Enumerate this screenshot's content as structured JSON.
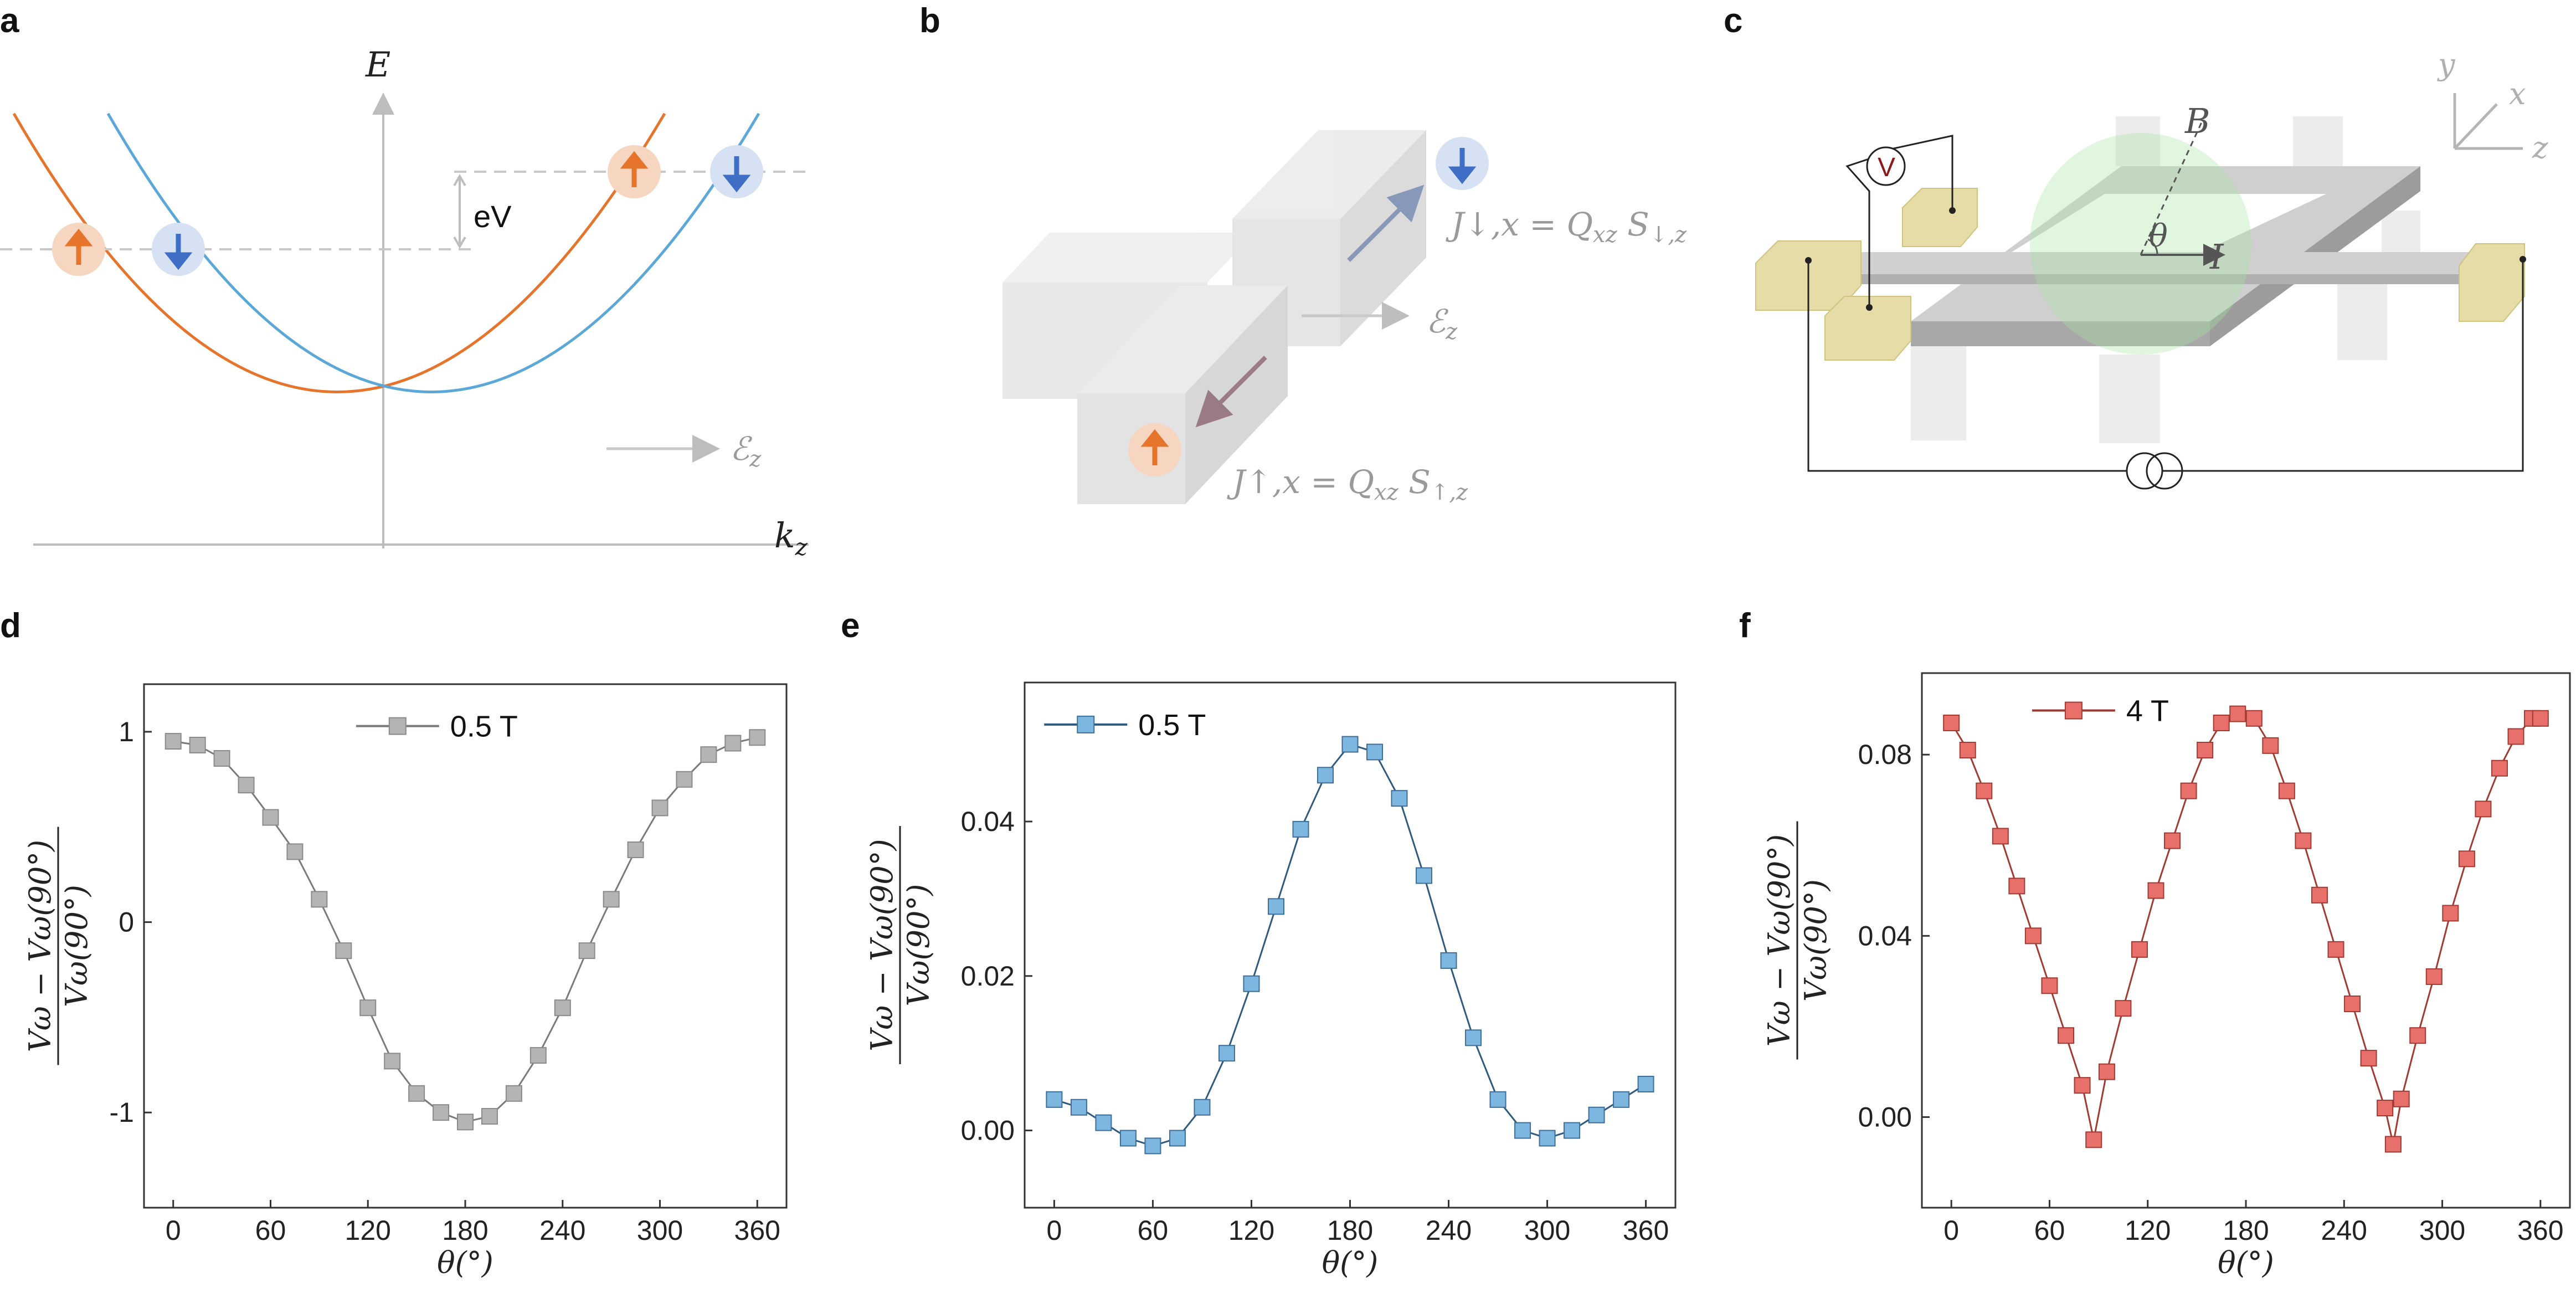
{
  "panels": {
    "a": {
      "label": "a",
      "e_axis": "E",
      "k_axis": "k",
      "k_axis_sub": "z",
      "ev": "eV",
      "field": "ℰ",
      "field_sub": "z"
    },
    "b": {
      "label": "b",
      "field": "ℰ",
      "field_sub": "z",
      "j_down": "J↓,x = Q",
      "j_down_q": "xz",
      "j_down_s": " S",
      "j_down_ssub": "↓,z",
      "j_up": "J↑,x = Q",
      "j_up_q": "xz",
      "j_up_s": " S",
      "j_up_ssub": "↑,z"
    },
    "c": {
      "label": "c",
      "axis_y": "y",
      "axis_x": "x",
      "axis_z": "z",
      "b_field": "B",
      "theta": "θ",
      "current": "I",
      "voltmeter": "V"
    },
    "d": {
      "label": "d"
    },
    "e": {
      "label": "e"
    },
    "f": {
      "label": "f"
    }
  },
  "colors": {
    "gray_series": "#b4b4b4",
    "blue_series": "#7db7df",
    "red_series": "#e8706a",
    "band_up": "#e6742b",
    "band_down": "#5ba8d8"
  },
  "chart_data": [
    {
      "type": "scatter",
      "panel": "d",
      "xlabel": "θ(°)",
      "ylabel_num": "Vω − Vω(90°)",
      "ylabel_den": "Vω(90°)",
      "xlim": [
        -18,
        378
      ],
      "ylim": [
        -1.5,
        1.25
      ],
      "xticks": [
        0,
        60,
        120,
        180,
        240,
        300,
        360
      ],
      "yticks": [
        -1,
        0,
        1
      ],
      "ytick_labels": [
        "-1",
        "0",
        "1"
      ],
      "legend_position": "top-center",
      "series": [
        {
          "name": "0.5 T",
          "marker": "square",
          "connected": true,
          "x": [
            0,
            15,
            30,
            45,
            60,
            75,
            90,
            105,
            120,
            135,
            150,
            165,
            180,
            195,
            210,
            225,
            240,
            255,
            270,
            285,
            300,
            315,
            330,
            345,
            360
          ],
          "y": [
            0.95,
            0.93,
            0.86,
            0.72,
            0.55,
            0.37,
            0.12,
            -0.15,
            -0.45,
            -0.73,
            -0.9,
            -1.0,
            -1.05,
            -1.02,
            -0.9,
            -0.7,
            -0.45,
            -0.15,
            0.12,
            0.38,
            0.6,
            0.75,
            0.88,
            0.94,
            0.97
          ]
        }
      ]
    },
    {
      "type": "scatter",
      "panel": "e",
      "xlabel": "θ(°)",
      "ylabel_num": "Vω − Vω(90°)",
      "ylabel_den": "Vω(90°)",
      "xlim": [
        -18,
        378
      ],
      "ylim": [
        -0.01,
        0.058
      ],
      "xticks": [
        0,
        60,
        120,
        180,
        240,
        300,
        360
      ],
      "yticks": [
        0.0,
        0.02,
        0.04
      ],
      "ytick_labels": [
        "0.00",
        "0.02",
        "0.04"
      ],
      "legend_position": "top-left",
      "series": [
        {
          "name": "0.5 T",
          "marker": "square",
          "connected": true,
          "x": [
            0,
            15,
            30,
            45,
            60,
            75,
            90,
            105,
            120,
            135,
            150,
            165,
            180,
            195,
            210,
            225,
            240,
            255,
            270,
            285,
            300,
            315,
            330,
            345,
            360
          ],
          "y": [
            0.004,
            0.003,
            0.001,
            -0.001,
            -0.002,
            -0.001,
            0.003,
            0.01,
            0.019,
            0.029,
            0.039,
            0.046,
            0.05,
            0.049,
            0.043,
            0.033,
            0.022,
            0.012,
            0.004,
            0.0,
            -0.001,
            0.0,
            0.002,
            0.004,
            0.006
          ]
        }
      ]
    },
    {
      "type": "scatter",
      "panel": "f",
      "xlabel": "θ(°)",
      "ylabel_num": "Vω − Vω(90°)",
      "ylabel_den": "Vω(90°)",
      "xlim": [
        -18,
        378
      ],
      "ylim": [
        -0.02,
        0.098
      ],
      "xticks": [
        0,
        60,
        120,
        180,
        240,
        300,
        360
      ],
      "yticks": [
        0.0,
        0.04,
        0.08
      ],
      "ytick_labels": [
        "0.00",
        "0.04",
        "0.08"
      ],
      "legend_position": "top-left",
      "series": [
        {
          "name": "4 T",
          "marker": "square",
          "connected": true,
          "x": [
            0,
            10,
            20,
            30,
            40,
            50,
            60,
            70,
            80,
            87,
            95,
            105,
            115,
            125,
            135,
            145,
            155,
            165,
            175,
            185,
            195,
            205,
            215,
            225,
            235,
            245,
            255,
            265,
            270,
            275,
            285,
            295,
            305,
            315,
            325,
            335,
            345,
            355,
            360
          ],
          "y": [
            0.087,
            0.081,
            0.072,
            0.062,
            0.051,
            0.04,
            0.029,
            0.018,
            0.007,
            -0.005,
            0.01,
            0.024,
            0.037,
            0.05,
            0.061,
            0.072,
            0.081,
            0.087,
            0.089,
            0.088,
            0.082,
            0.072,
            0.061,
            0.049,
            0.037,
            0.025,
            0.013,
            0.002,
            -0.006,
            0.004,
            0.018,
            0.031,
            0.045,
            0.057,
            0.068,
            0.077,
            0.084,
            0.088,
            0.088
          ]
        }
      ]
    }
  ]
}
